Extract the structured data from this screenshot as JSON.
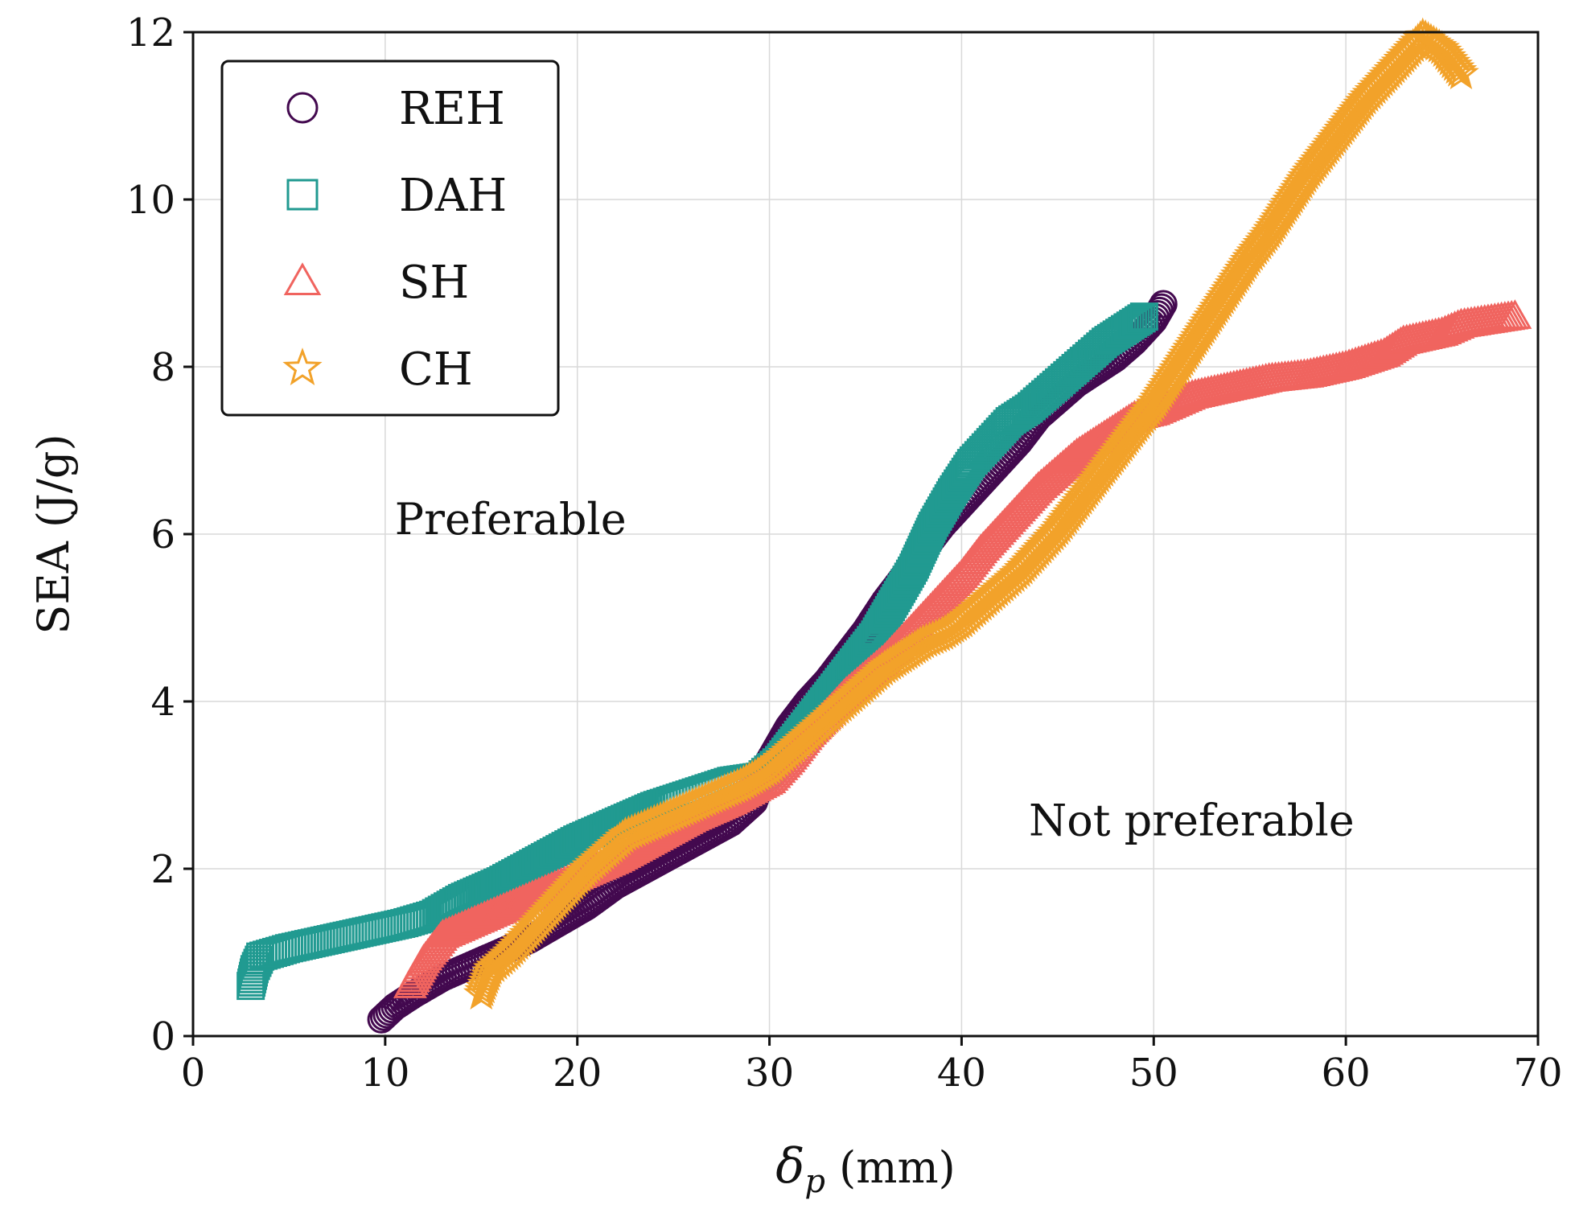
{
  "chart_data": {
    "type": "scatter",
    "title": "",
    "xlabel_symbol": "δ",
    "xlabel_subscript": "p",
    "xlabel_unit": " (mm)",
    "ylabel": "SEA (J/g)",
    "xlim": [
      0,
      70
    ],
    "ylim": [
      0,
      12
    ],
    "xticks": [
      0,
      10,
      20,
      30,
      40,
      50,
      60,
      70
    ],
    "yticks": [
      0,
      2,
      4,
      6,
      8,
      10,
      12
    ],
    "grid": true,
    "legend_position": "top-left",
    "annotations": [
      {
        "text": "Preferable",
        "x": 10.5,
        "y": 6.0
      },
      {
        "text": "Not preferable",
        "x": 43.5,
        "y": 2.4
      }
    ],
    "series": [
      {
        "name": "REH",
        "marker": "circle",
        "color": "#43094f",
        "points": [
          [
            9.8,
            0.2
          ],
          [
            10.5,
            0.35
          ],
          [
            11.5,
            0.5
          ],
          [
            13,
            0.7
          ],
          [
            14.5,
            0.85
          ],
          [
            16,
            1.0
          ],
          [
            17.5,
            1.15
          ],
          [
            19,
            1.35
          ],
          [
            20.5,
            1.55
          ],
          [
            22,
            1.8
          ],
          [
            24,
            2.05
          ],
          [
            26,
            2.3
          ],
          [
            28,
            2.55
          ],
          [
            29.2,
            2.8
          ],
          [
            30,
            3.3
          ],
          [
            31,
            3.7
          ],
          [
            32,
            4.0
          ],
          [
            33,
            4.25
          ],
          [
            34,
            4.55
          ],
          [
            35,
            4.85
          ],
          [
            36,
            5.2
          ],
          [
            37,
            5.5
          ],
          [
            38,
            5.8
          ],
          [
            39,
            6.1
          ],
          [
            40,
            6.35
          ],
          [
            41,
            6.6
          ],
          [
            42,
            6.85
          ],
          [
            43,
            7.1
          ],
          [
            44,
            7.4
          ],
          [
            45,
            7.6
          ],
          [
            46,
            7.8
          ],
          [
            47,
            7.95
          ],
          [
            48,
            8.1
          ],
          [
            49,
            8.3
          ],
          [
            50,
            8.55
          ],
          [
            50.5,
            8.75
          ]
        ]
      },
      {
        "name": "DAH",
        "marker": "square",
        "color": "#219a91",
        "points": [
          [
            3,
            0.6
          ],
          [
            3.2,
            0.8
          ],
          [
            3.5,
            0.95
          ],
          [
            5,
            1.05
          ],
          [
            7,
            1.15
          ],
          [
            9,
            1.25
          ],
          [
            11,
            1.35
          ],
          [
            12.5,
            1.45
          ],
          [
            14,
            1.65
          ],
          [
            16,
            1.85
          ],
          [
            18,
            2.1
          ],
          [
            20,
            2.35
          ],
          [
            22,
            2.55
          ],
          [
            24,
            2.75
          ],
          [
            26,
            2.9
          ],
          [
            28,
            3.05
          ],
          [
            29.5,
            3.1
          ],
          [
            30.5,
            3.3
          ],
          [
            31.5,
            3.6
          ],
          [
            32.5,
            3.9
          ],
          [
            33.5,
            4.2
          ],
          [
            34.5,
            4.5
          ],
          [
            35.5,
            4.8
          ],
          [
            36.5,
            5.2
          ],
          [
            37.5,
            5.6
          ],
          [
            38.5,
            6.1
          ],
          [
            39.5,
            6.5
          ],
          [
            40.5,
            6.85
          ],
          [
            41.5,
            7.1
          ],
          [
            42.5,
            7.35
          ],
          [
            43.5,
            7.5
          ],
          [
            44.5,
            7.7
          ],
          [
            45.5,
            7.9
          ],
          [
            46.5,
            8.1
          ],
          [
            47.5,
            8.3
          ],
          [
            48.5,
            8.45
          ],
          [
            49.5,
            8.6
          ]
        ]
      },
      {
        "name": "SH",
        "marker": "triangle",
        "color": "#f0645f",
        "points": [
          [
            11.3,
            0.6
          ],
          [
            12,
            0.9
          ],
          [
            13,
            1.2
          ],
          [
            14.5,
            1.35
          ],
          [
            16,
            1.5
          ],
          [
            17.5,
            1.65
          ],
          [
            19,
            1.8
          ],
          [
            20.5,
            1.95
          ],
          [
            22,
            2.1
          ],
          [
            24,
            2.35
          ],
          [
            26,
            2.6
          ],
          [
            28,
            2.8
          ],
          [
            30,
            3.05
          ],
          [
            31,
            3.3
          ],
          [
            32,
            3.6
          ],
          [
            33,
            3.85
          ],
          [
            34,
            4.1
          ],
          [
            35,
            4.3
          ],
          [
            36,
            4.5
          ],
          [
            37,
            4.75
          ],
          [
            38,
            5.0
          ],
          [
            39,
            5.25
          ],
          [
            40,
            5.5
          ],
          [
            41,
            5.8
          ],
          [
            42,
            6.05
          ],
          [
            43,
            6.3
          ],
          [
            44,
            6.55
          ],
          [
            45,
            6.75
          ],
          [
            46,
            6.95
          ],
          [
            47,
            7.1
          ],
          [
            48,
            7.25
          ],
          [
            49,
            7.4
          ],
          [
            50,
            7.45
          ],
          [
            51,
            7.55
          ],
          [
            52,
            7.65
          ],
          [
            54,
            7.75
          ],
          [
            56,
            7.85
          ],
          [
            58,
            7.9
          ],
          [
            60,
            8.0
          ],
          [
            62,
            8.15
          ],
          [
            63,
            8.3
          ],
          [
            65,
            8.4
          ],
          [
            66,
            8.5
          ],
          [
            68.8,
            8.6
          ]
        ]
      },
      {
        "name": "CH",
        "marker": "star",
        "color": "#f2a22a",
        "points": [
          [
            15,
            0.5
          ],
          [
            15.5,
            0.8
          ],
          [
            16.5,
            1.0
          ],
          [
            17.5,
            1.25
          ],
          [
            18.5,
            1.5
          ],
          [
            19.5,
            1.75
          ],
          [
            20.5,
            2.0
          ],
          [
            21.5,
            2.2
          ],
          [
            22.5,
            2.4
          ],
          [
            24,
            2.55
          ],
          [
            25.5,
            2.7
          ],
          [
            27,
            2.85
          ],
          [
            28.5,
            3.0
          ],
          [
            30,
            3.2
          ],
          [
            31,
            3.4
          ],
          [
            32,
            3.6
          ],
          [
            33,
            3.8
          ],
          [
            34,
            4.0
          ],
          [
            35,
            4.2
          ],
          [
            36,
            4.4
          ],
          [
            37,
            4.55
          ],
          [
            38,
            4.7
          ],
          [
            39,
            4.8
          ],
          [
            40,
            4.95
          ],
          [
            41,
            5.15
          ],
          [
            42,
            5.35
          ],
          [
            43,
            5.55
          ],
          [
            44,
            5.8
          ],
          [
            45,
            6.05
          ],
          [
            46,
            6.35
          ],
          [
            47,
            6.65
          ],
          [
            48,
            6.95
          ],
          [
            49,
            7.25
          ],
          [
            50,
            7.55
          ],
          [
            51,
            7.9
          ],
          [
            52,
            8.25
          ],
          [
            53,
            8.6
          ],
          [
            54,
            8.95
          ],
          [
            55,
            9.3
          ],
          [
            56,
            9.6
          ],
          [
            57,
            9.95
          ],
          [
            58,
            10.3
          ],
          [
            59,
            10.6
          ],
          [
            60,
            10.9
          ],
          [
            61,
            11.2
          ],
          [
            62,
            11.45
          ],
          [
            63,
            11.7
          ],
          [
            64,
            11.95
          ],
          [
            65,
            11.8
          ],
          [
            66,
            11.5
          ]
        ]
      }
    ]
  }
}
